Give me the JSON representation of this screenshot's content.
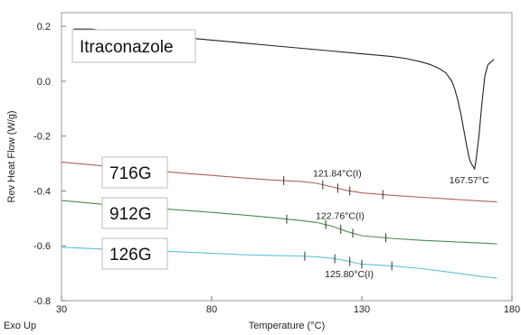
{
  "chart_data": {
    "type": "line",
    "xlabel": "Temperature (°C)",
    "ylabel": "Rev Heat Flow (W/g)",
    "corner_label": "Exo Up",
    "xlim": [
      30,
      180
    ],
    "ylim": [
      -0.8,
      0.25
    ],
    "x_ticks": [
      "30",
      "80",
      "130",
      "180"
    ],
    "y_ticks": [
      "0.2",
      "0.0",
      "-0.2",
      "-0.4",
      "-0.6",
      "-0.8"
    ],
    "grid": false,
    "series": [
      {
        "name": "Itraconazole",
        "color": "#222222",
        "x": [
          34,
          40,
          50,
          60,
          70,
          80,
          90,
          100,
          110,
          120,
          130,
          140,
          145,
          150,
          153,
          156,
          158,
          160,
          161,
          162,
          163,
          164,
          165,
          166,
          167,
          167.57,
          168,
          169,
          170,
          171,
          172,
          173,
          174
        ],
        "y": [
          0.19,
          0.19,
          0.175,
          0.17,
          0.16,
          0.15,
          0.14,
          0.13,
          0.12,
          0.11,
          0.1,
          0.09,
          0.082,
          0.07,
          0.06,
          0.045,
          0.03,
          0.0,
          -0.03,
          -0.07,
          -0.12,
          -0.18,
          -0.24,
          -0.29,
          -0.31,
          -0.32,
          -0.29,
          -0.2,
          -0.08,
          0.02,
          0.06,
          0.07,
          0.08
        ]
      },
      {
        "name": "716G",
        "color": "#b06060",
        "x": [
          30,
          40,
          50,
          60,
          70,
          80,
          90,
          100,
          110,
          115,
          120,
          125,
          130,
          140,
          150,
          160,
          170,
          175
        ],
        "y": [
          -0.295,
          -0.305,
          -0.315,
          -0.325,
          -0.335,
          -0.343,
          -0.352,
          -0.36,
          -0.366,
          -0.372,
          -0.385,
          -0.398,
          -0.407,
          -0.416,
          -0.423,
          -0.43,
          -0.437,
          -0.44
        ]
      },
      {
        "name": "912G",
        "color": "#4e8a4e",
        "x": [
          30,
          40,
          50,
          60,
          70,
          80,
          90,
          100,
          110,
          115,
          120,
          125,
          130,
          140,
          150,
          160,
          170,
          175
        ],
        "y": [
          -0.435,
          -0.445,
          -0.455,
          -0.462,
          -0.47,
          -0.478,
          -0.487,
          -0.497,
          -0.508,
          -0.515,
          -0.528,
          -0.548,
          -0.563,
          -0.573,
          -0.58,
          -0.585,
          -0.59,
          -0.593
        ]
      },
      {
        "name": "126G",
        "color": "#5bc2d8",
        "x": [
          30,
          40,
          50,
          60,
          70,
          80,
          90,
          100,
          110,
          115,
          120,
          125,
          130,
          140,
          150,
          160,
          170,
          175
        ],
        "y": [
          -0.605,
          -0.61,
          -0.614,
          -0.618,
          -0.622,
          -0.627,
          -0.632,
          -0.635,
          -0.637,
          -0.64,
          -0.645,
          -0.655,
          -0.667,
          -0.673,
          -0.683,
          -0.697,
          -0.712,
          -0.718
        ]
      }
    ],
    "annotations": [
      {
        "text": "167.57°C",
        "x": 167.57,
        "y": -0.32
      },
      {
        "text": "121.84°C(I)",
        "x": 121.84,
        "y": -0.38
      },
      {
        "text": "122.76°C(I)",
        "x": 122.76,
        "y": -0.535
      },
      {
        "text": "125.80°C(I)",
        "x": 125.8,
        "y": -0.655
      }
    ],
    "transition_markers": [
      {
        "series": "716G",
        "x": [
          104,
          117,
          122,
          126,
          137
        ]
      },
      {
        "series": "912G",
        "x": [
          105,
          118,
          123,
          127,
          138
        ]
      },
      {
        "series": "126G",
        "x": [
          111,
          121,
          126,
          130,
          140
        ]
      }
    ]
  }
}
